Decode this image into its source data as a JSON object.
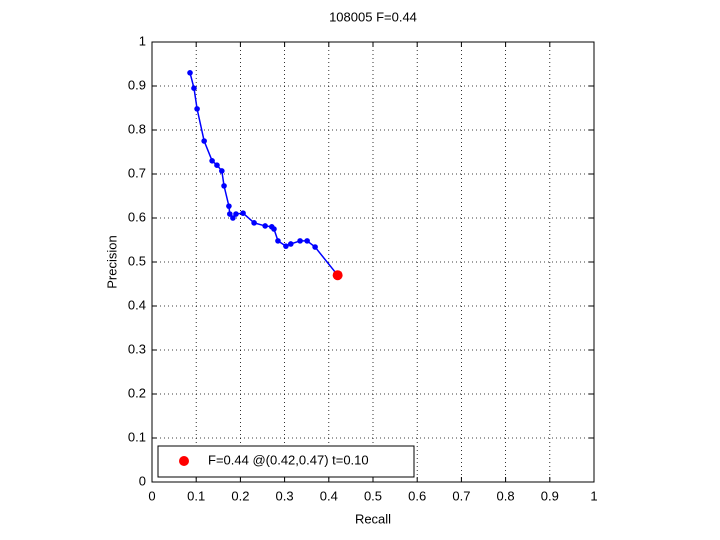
{
  "chart_data": {
    "type": "line",
    "title": "108005 F=0.44",
    "xlabel": "Recall",
    "ylabel": "Precision",
    "xlim": [
      0,
      1
    ],
    "ylim": [
      0,
      1
    ],
    "xticks": [
      0,
      0.1,
      0.2,
      0.3,
      0.4,
      0.5,
      0.6,
      0.7,
      0.8,
      0.9,
      1
    ],
    "yticks": [
      0,
      0.1,
      0.2,
      0.3,
      0.4,
      0.5,
      0.6,
      0.7,
      0.8,
      0.9,
      1
    ],
    "grid": true,
    "legend": "lower left",
    "series": [
      {
        "type": "line",
        "color": "#0000ff",
        "x": [
          0.086,
          0.095,
          0.102,
          0.118,
          0.136,
          0.147,
          0.158,
          0.163,
          0.174,
          0.176,
          0.183,
          0.19,
          0.206,
          0.231,
          0.256,
          0.271,
          0.276,
          0.285,
          0.303,
          0.314,
          0.335,
          0.351,
          0.369,
          0.42
        ],
        "values": [
          0.93,
          0.895,
          0.848,
          0.775,
          0.73,
          0.72,
          0.707,
          0.673,
          0.627,
          0.609,
          0.6,
          0.609,
          0.611,
          0.589,
          0.582,
          0.58,
          0.575,
          0.548,
          0.536,
          0.541,
          0.548,
          0.548,
          0.534,
          0.47
        ]
      },
      {
        "type": "scatter",
        "name": "F=0.44 @(0.42,0.47) t=0.10",
        "color": "#ff0000",
        "x": [
          0.42
        ],
        "values": [
          0.47
        ]
      }
    ]
  }
}
